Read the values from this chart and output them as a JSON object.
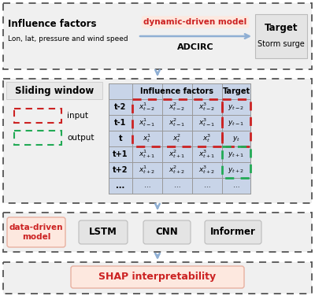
{
  "dashed_border_color": "#555555",
  "box1_bold": "Influence factors",
  "box1_small": "Lon, lat, pressure and wind speed",
  "box2_bold": "Target",
  "box2_small": "Storm surge",
  "arrow_label_top": "dynamic-driven model",
  "arrow_label_bottom": "ADCIRC",
  "arrow_color": "#8fafd4",
  "sliding_window_text": "Sliding window",
  "table_header1": "Influence factors",
  "table_header2": "Target",
  "table_bg": "#c8d4e8",
  "table_border": "#999999",
  "red_dash_color": "#cc2222",
  "green_dash_color": "#22aa55",
  "input_label": "input",
  "output_label": "output",
  "rows": [
    "t-2",
    "t-1",
    "t",
    "t+1",
    "t+2",
    "..."
  ],
  "model_label": "data-driven\nmodel",
  "model_label_color": "#cc2222",
  "lstm_text": "LSTM",
  "cnn_text": "CNN",
  "informer_text": "Informer",
  "shap_text": "SHAP interpretability",
  "shap_color": "#cc2222",
  "section_bg": "#f0f0f0",
  "sub_box_bg": "#e4e4e4",
  "salmon_bg": "#fde8df",
  "salmon_edge": "#e8b0a0"
}
